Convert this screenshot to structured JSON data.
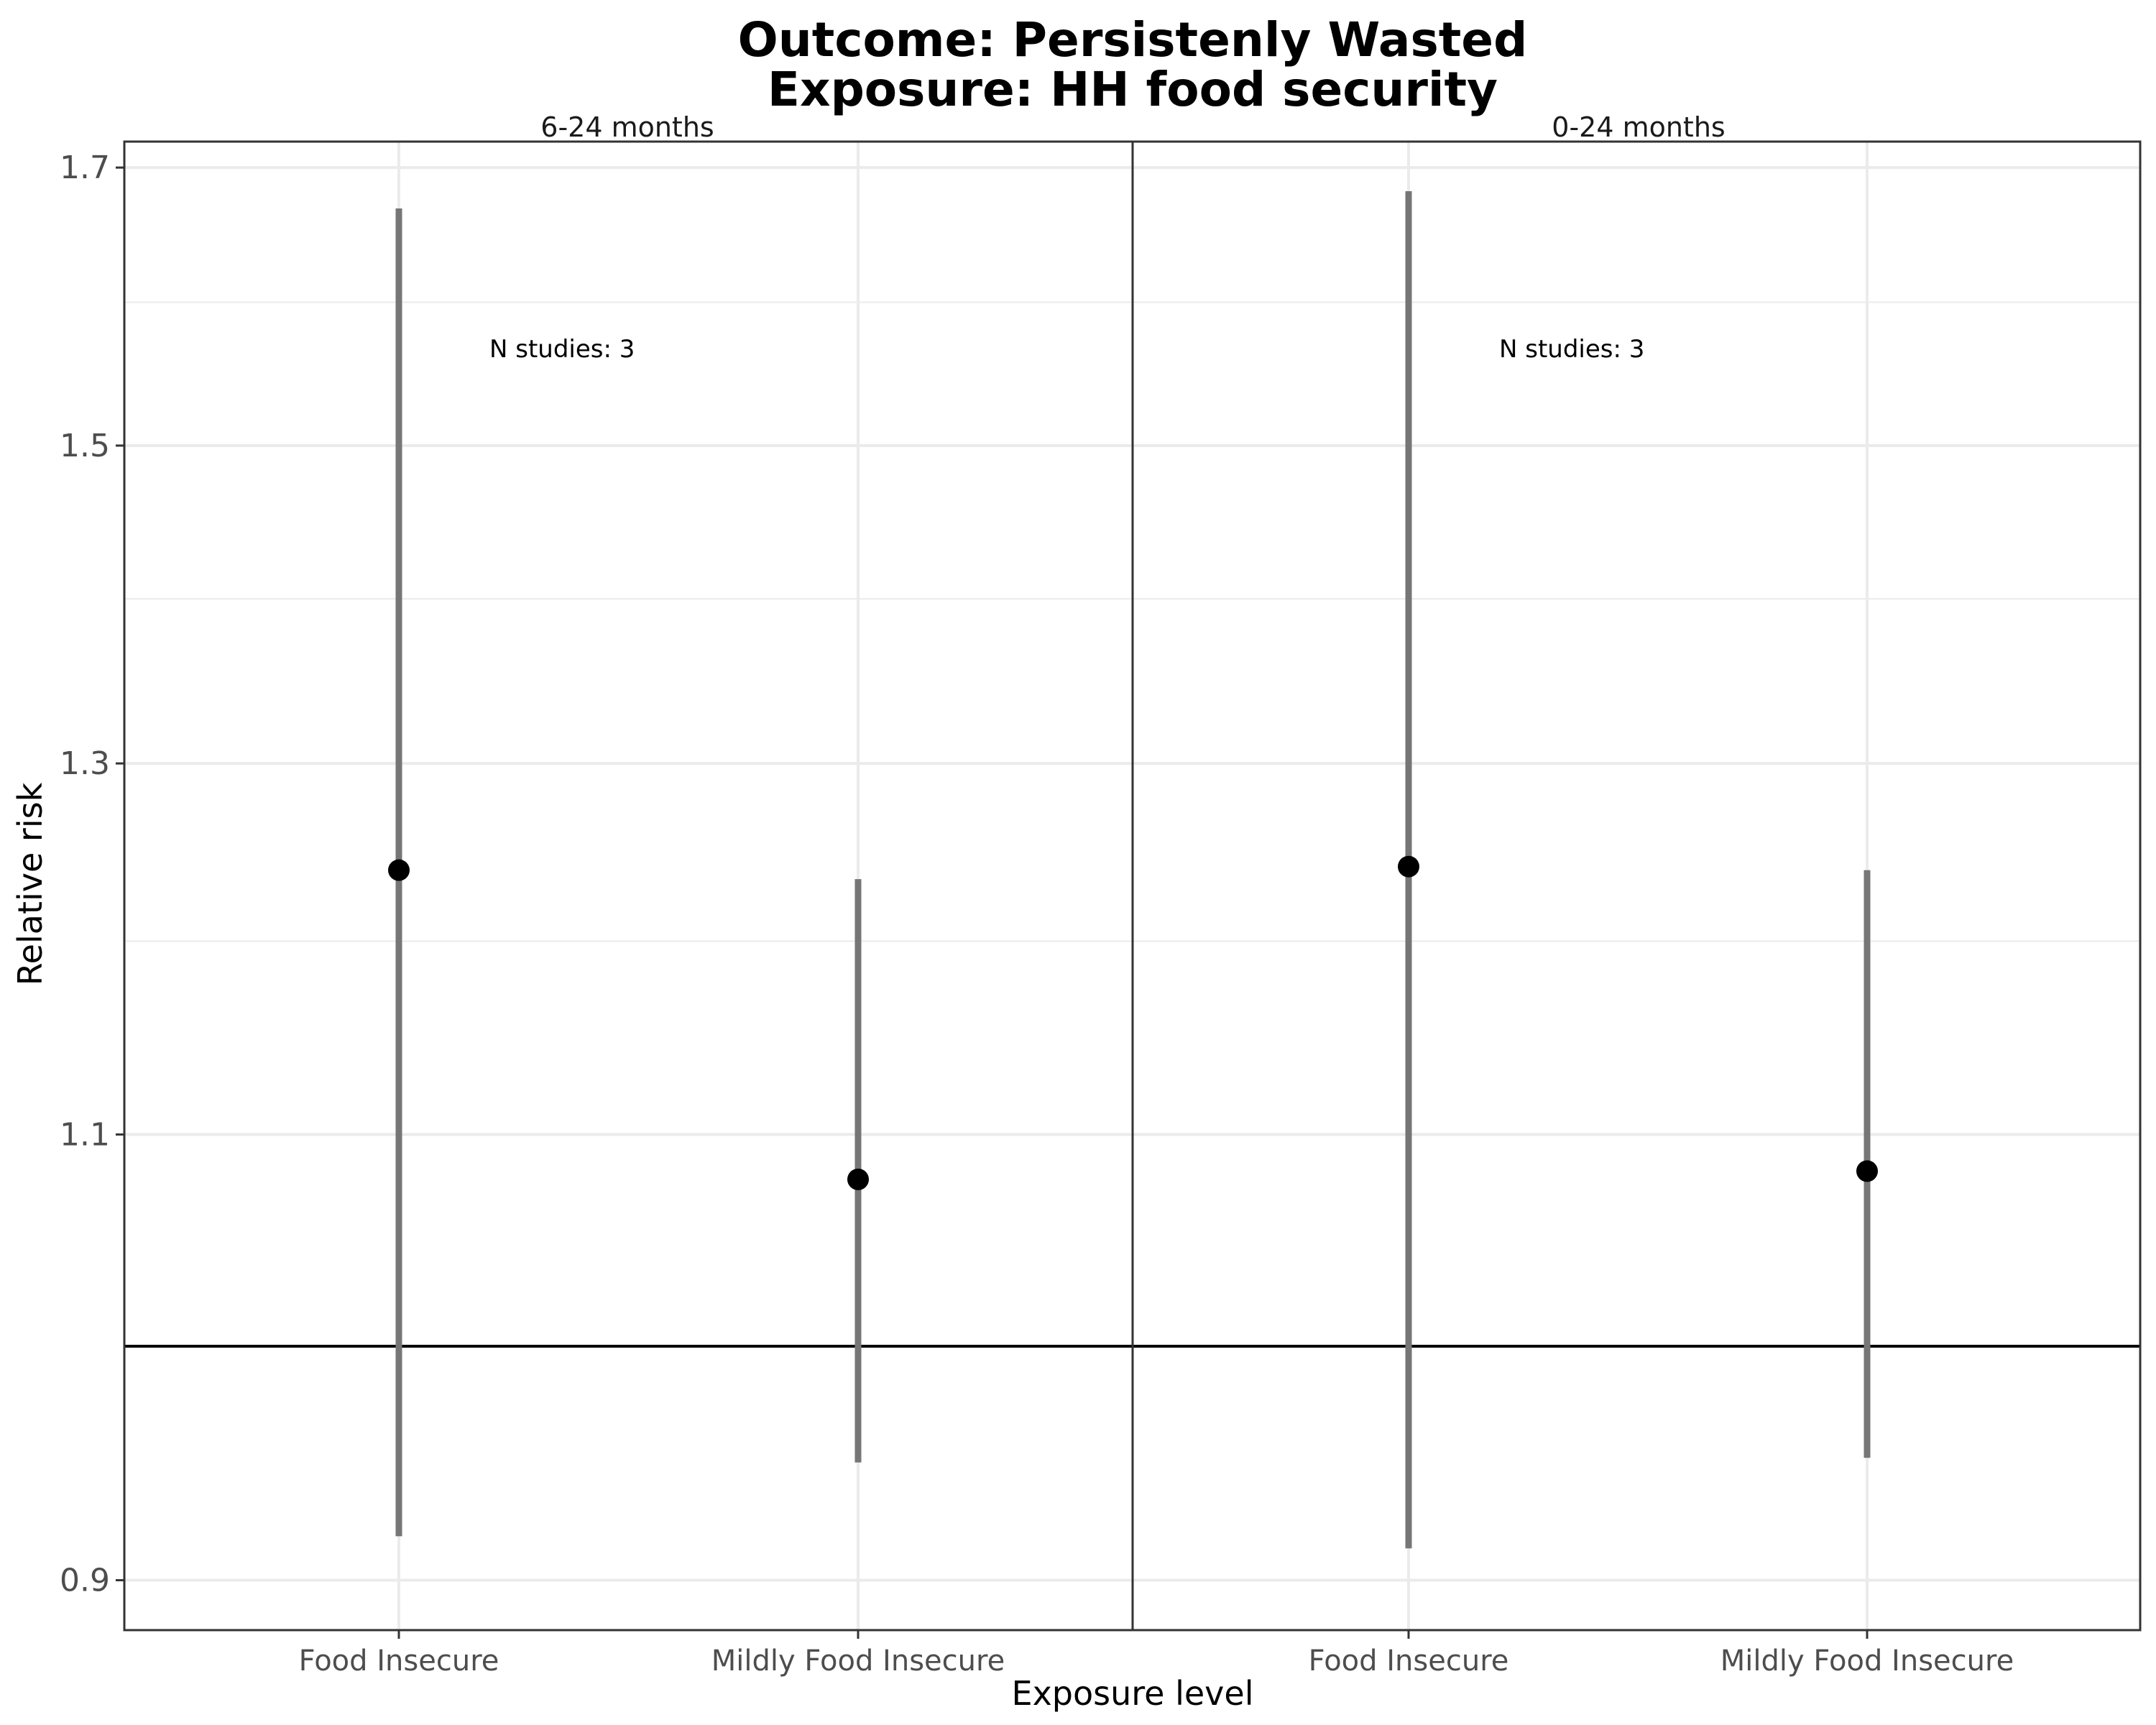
{
  "chart_data": {
    "type": "scatter",
    "title": [
      "Outcome: Persistenly Wasted",
      "Exposure: HH food security"
    ],
    "xlabel": "Exposure level",
    "ylabel": "Relative risk",
    "y_scale": "log",
    "ylim": [
      0.88,
      1.72
    ],
    "y_ticks": [
      "0.9",
      "1.1",
      "1.3",
      "1.5",
      "1.7"
    ],
    "y_tick_values": [
      0.9,
      1.1,
      1.3,
      1.5,
      1.7
    ],
    "reference_line": 1,
    "grid": true,
    "categories": [
      "Food Insecure",
      "Mildly Food Insecure"
    ],
    "facets": [
      {
        "strip": "6-24 months",
        "annotation": "N studies: 3",
        "points": [
          {
            "category": "Food Insecure",
            "estimate": 1.239,
            "ci_lower": 0.918,
            "ci_upper": 1.669
          },
          {
            "category": "Mildly Food Insecure",
            "estimate": 1.078,
            "ci_lower": 0.949,
            "ci_upper": 1.234
          }
        ]
      },
      {
        "strip": "0-24 months",
        "annotation": "N studies: 3",
        "points": [
          {
            "category": "Food Insecure",
            "estimate": 1.241,
            "ci_lower": 0.913,
            "ci_upper": 1.682
          },
          {
            "category": "Mildly Food Insecure",
            "estimate": 1.082,
            "ci_lower": 0.951,
            "ci_upper": 1.239
          }
        ]
      }
    ],
    "colors": {
      "point": "#000000",
      "ci_line": "#767676",
      "reference": "#000000",
      "grid": "#ebebeb",
      "border": "#333333"
    }
  }
}
